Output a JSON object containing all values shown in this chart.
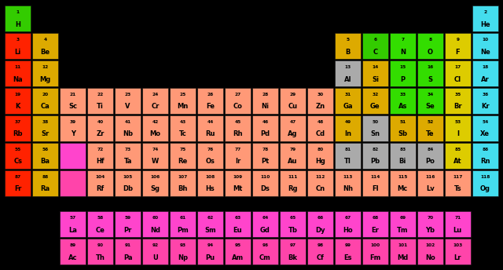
{
  "background": "#000000",
  "elements": [
    {
      "num": 1,
      "sym": "H",
      "col": 0,
      "row": 0,
      "color": "#33cc00"
    },
    {
      "num": 2,
      "sym": "He",
      "col": 17,
      "row": 0,
      "color": "#44ddee"
    },
    {
      "num": 3,
      "sym": "Li",
      "col": 0,
      "row": 1,
      "color": "#ff2200"
    },
    {
      "num": 4,
      "sym": "Be",
      "col": 1,
      "row": 1,
      "color": "#ddaa00"
    },
    {
      "num": 5,
      "sym": "B",
      "col": 12,
      "row": 1,
      "color": "#ddaa00"
    },
    {
      "num": 6,
      "sym": "C",
      "col": 13,
      "row": 1,
      "color": "#33cc00"
    },
    {
      "num": 7,
      "sym": "N",
      "col": 14,
      "row": 1,
      "color": "#33dd00"
    },
    {
      "num": 8,
      "sym": "O",
      "col": 15,
      "row": 1,
      "color": "#33dd00"
    },
    {
      "num": 9,
      "sym": "F",
      "col": 16,
      "row": 1,
      "color": "#ddcc00"
    },
    {
      "num": 10,
      "sym": "Ne",
      "col": 17,
      "row": 1,
      "color": "#44ddee"
    },
    {
      "num": 11,
      "sym": "Na",
      "col": 0,
      "row": 2,
      "color": "#ff2200"
    },
    {
      "num": 12,
      "sym": "Mg",
      "col": 1,
      "row": 2,
      "color": "#ddaa00"
    },
    {
      "num": 13,
      "sym": "Al",
      "col": 12,
      "row": 2,
      "color": "#aaaaaa"
    },
    {
      "num": 14,
      "sym": "Si",
      "col": 13,
      "row": 2,
      "color": "#ddaa00"
    },
    {
      "num": 15,
      "sym": "P",
      "col": 14,
      "row": 2,
      "color": "#33dd00"
    },
    {
      "num": 16,
      "sym": "S",
      "col": 15,
      "row": 2,
      "color": "#33dd00"
    },
    {
      "num": 17,
      "sym": "Cl",
      "col": 16,
      "row": 2,
      "color": "#ddcc00"
    },
    {
      "num": 18,
      "sym": "Ar",
      "col": 17,
      "row": 2,
      "color": "#44ddee"
    },
    {
      "num": 19,
      "sym": "K",
      "col": 0,
      "row": 3,
      "color": "#ff2200"
    },
    {
      "num": 20,
      "sym": "Ca",
      "col": 1,
      "row": 3,
      "color": "#ddaa00"
    },
    {
      "num": 21,
      "sym": "Sc",
      "col": 2,
      "row": 3,
      "color": "#ff9977"
    },
    {
      "num": 22,
      "sym": "Ti",
      "col": 3,
      "row": 3,
      "color": "#ff9977"
    },
    {
      "num": 23,
      "sym": "V",
      "col": 4,
      "row": 3,
      "color": "#ff9977"
    },
    {
      "num": 24,
      "sym": "Cr",
      "col": 5,
      "row": 3,
      "color": "#ff9977"
    },
    {
      "num": 25,
      "sym": "Mn",
      "col": 6,
      "row": 3,
      "color": "#ff9977"
    },
    {
      "num": 26,
      "sym": "Fe",
      "col": 7,
      "row": 3,
      "color": "#ff9977"
    },
    {
      "num": 27,
      "sym": "Co",
      "col": 8,
      "row": 3,
      "color": "#ff9977"
    },
    {
      "num": 28,
      "sym": "Ni",
      "col": 9,
      "row": 3,
      "color": "#ff9977"
    },
    {
      "num": 29,
      "sym": "Cu",
      "col": 10,
      "row": 3,
      "color": "#ff9977"
    },
    {
      "num": 30,
      "sym": "Zn",
      "col": 11,
      "row": 3,
      "color": "#ff9977"
    },
    {
      "num": 31,
      "sym": "Ga",
      "col": 12,
      "row": 3,
      "color": "#ddaa00"
    },
    {
      "num": 32,
      "sym": "Ge",
      "col": 13,
      "row": 3,
      "color": "#ddaa00"
    },
    {
      "num": 33,
      "sym": "As",
      "col": 14,
      "row": 3,
      "color": "#33dd00"
    },
    {
      "num": 34,
      "sym": "Se",
      "col": 15,
      "row": 3,
      "color": "#33dd00"
    },
    {
      "num": 35,
      "sym": "Br",
      "col": 16,
      "row": 3,
      "color": "#ddcc00"
    },
    {
      "num": 36,
      "sym": "Kr",
      "col": 17,
      "row": 3,
      "color": "#44ddee"
    },
    {
      "num": 37,
      "sym": "Rb",
      "col": 0,
      "row": 4,
      "color": "#ff2200"
    },
    {
      "num": 38,
      "sym": "Sr",
      "col": 1,
      "row": 4,
      "color": "#ddaa00"
    },
    {
      "num": 39,
      "sym": "Y",
      "col": 2,
      "row": 4,
      "color": "#ff9977"
    },
    {
      "num": 40,
      "sym": "Zr",
      "col": 3,
      "row": 4,
      "color": "#ff9977"
    },
    {
      "num": 41,
      "sym": "Nb",
      "col": 4,
      "row": 4,
      "color": "#ff9977"
    },
    {
      "num": 42,
      "sym": "Mo",
      "col": 5,
      "row": 4,
      "color": "#ff9977"
    },
    {
      "num": 43,
      "sym": "Tc",
      "col": 6,
      "row": 4,
      "color": "#ff9977"
    },
    {
      "num": 44,
      "sym": "Ru",
      "col": 7,
      "row": 4,
      "color": "#ff9977"
    },
    {
      "num": 45,
      "sym": "Rh",
      "col": 8,
      "row": 4,
      "color": "#ff9977"
    },
    {
      "num": 46,
      "sym": "Pd",
      "col": 9,
      "row": 4,
      "color": "#ff9977"
    },
    {
      "num": 47,
      "sym": "Ag",
      "col": 10,
      "row": 4,
      "color": "#ff9977"
    },
    {
      "num": 48,
      "sym": "Cd",
      "col": 11,
      "row": 4,
      "color": "#ff9977"
    },
    {
      "num": 49,
      "sym": "In",
      "col": 12,
      "row": 4,
      "color": "#ddaa00"
    },
    {
      "num": 50,
      "sym": "Sn",
      "col": 13,
      "row": 4,
      "color": "#aaaaaa"
    },
    {
      "num": 51,
      "sym": "Sb",
      "col": 14,
      "row": 4,
      "color": "#ddaa00"
    },
    {
      "num": 52,
      "sym": "Te",
      "col": 15,
      "row": 4,
      "color": "#ddaa00"
    },
    {
      "num": 53,
      "sym": "I",
      "col": 16,
      "row": 4,
      "color": "#ddcc00"
    },
    {
      "num": 54,
      "sym": "Xe",
      "col": 17,
      "row": 4,
      "color": "#44ddee"
    },
    {
      "num": 55,
      "sym": "Cs",
      "col": 0,
      "row": 5,
      "color": "#ff2200"
    },
    {
      "num": 56,
      "sym": "Ba",
      "col": 1,
      "row": 5,
      "color": "#ddaa00"
    },
    {
      "num": 0,
      "sym": "",
      "col": 2,
      "row": 5,
      "color": "#ff44cc"
    },
    {
      "num": 72,
      "sym": "Hf",
      "col": 3,
      "row": 5,
      "color": "#ff9977"
    },
    {
      "num": 73,
      "sym": "Ta",
      "col": 4,
      "row": 5,
      "color": "#ff9977"
    },
    {
      "num": 74,
      "sym": "W",
      "col": 5,
      "row": 5,
      "color": "#ff9977"
    },
    {
      "num": 75,
      "sym": "Re",
      "col": 6,
      "row": 5,
      "color": "#ff9977"
    },
    {
      "num": 76,
      "sym": "Os",
      "col": 7,
      "row": 5,
      "color": "#ff9977"
    },
    {
      "num": 77,
      "sym": "Ir",
      "col": 8,
      "row": 5,
      "color": "#ff9977"
    },
    {
      "num": 78,
      "sym": "Pt",
      "col": 9,
      "row": 5,
      "color": "#ff9977"
    },
    {
      "num": 79,
      "sym": "Au",
      "col": 10,
      "row": 5,
      "color": "#ff9977"
    },
    {
      "num": 80,
      "sym": "Hg",
      "col": 11,
      "row": 5,
      "color": "#ff9977"
    },
    {
      "num": 81,
      "sym": "Tl",
      "col": 12,
      "row": 5,
      "color": "#aaaaaa"
    },
    {
      "num": 82,
      "sym": "Pb",
      "col": 13,
      "row": 5,
      "color": "#aaaaaa"
    },
    {
      "num": 83,
      "sym": "Bi",
      "col": 14,
      "row": 5,
      "color": "#aaaaaa"
    },
    {
      "num": 84,
      "sym": "Po",
      "col": 15,
      "row": 5,
      "color": "#aaaaaa"
    },
    {
      "num": 85,
      "sym": "At",
      "col": 16,
      "row": 5,
      "color": "#ddcc00"
    },
    {
      "num": 86,
      "sym": "Rn",
      "col": 17,
      "row": 5,
      "color": "#44ddee"
    },
    {
      "num": 87,
      "sym": "Fr",
      "col": 0,
      "row": 6,
      "color": "#ff2200"
    },
    {
      "num": 88,
      "sym": "Ra",
      "col": 1,
      "row": 6,
      "color": "#ddaa00"
    },
    {
      "num": 0,
      "sym": "",
      "col": 2,
      "row": 6,
      "color": "#ff44aa"
    },
    {
      "num": 104,
      "sym": "Rf",
      "col": 3,
      "row": 6,
      "color": "#ff9977"
    },
    {
      "num": 105,
      "sym": "Db",
      "col": 4,
      "row": 6,
      "color": "#ff9977"
    },
    {
      "num": 106,
      "sym": "Sg",
      "col": 5,
      "row": 6,
      "color": "#ff9977"
    },
    {
      "num": 107,
      "sym": "Bh",
      "col": 6,
      "row": 6,
      "color": "#ff9977"
    },
    {
      "num": 108,
      "sym": "Hs",
      "col": 7,
      "row": 6,
      "color": "#ff9977"
    },
    {
      "num": 109,
      "sym": "Mt",
      "col": 8,
      "row": 6,
      "color": "#ff9977"
    },
    {
      "num": 110,
      "sym": "Ds",
      "col": 9,
      "row": 6,
      "color": "#ff9977"
    },
    {
      "num": 111,
      "sym": "Rg",
      "col": 10,
      "row": 6,
      "color": "#ff9977"
    },
    {
      "num": 112,
      "sym": "Cn",
      "col": 11,
      "row": 6,
      "color": "#ff9977"
    },
    {
      "num": 113,
      "sym": "Nh",
      "col": 12,
      "row": 6,
      "color": "#ff9977"
    },
    {
      "num": 114,
      "sym": "Fl",
      "col": 13,
      "row": 6,
      "color": "#ff9977"
    },
    {
      "num": 115,
      "sym": "Mc",
      "col": 14,
      "row": 6,
      "color": "#ff9977"
    },
    {
      "num": 116,
      "sym": "Lv",
      "col": 15,
      "row": 6,
      "color": "#ff9977"
    },
    {
      "num": 117,
      "sym": "Ts",
      "col": 16,
      "row": 6,
      "color": "#ff9977"
    },
    {
      "num": 118,
      "sym": "Og",
      "col": 17,
      "row": 6,
      "color": "#44ddee"
    },
    {
      "num": 57,
      "sym": "La",
      "col": 2,
      "row": 8,
      "color": "#ff44cc"
    },
    {
      "num": 58,
      "sym": "Ce",
      "col": 3,
      "row": 8,
      "color": "#ff44cc"
    },
    {
      "num": 59,
      "sym": "Pr",
      "col": 4,
      "row": 8,
      "color": "#ff44cc"
    },
    {
      "num": 60,
      "sym": "Nd",
      "col": 5,
      "row": 8,
      "color": "#ff44cc"
    },
    {
      "num": 61,
      "sym": "Pm",
      "col": 6,
      "row": 8,
      "color": "#ff44cc"
    },
    {
      "num": 62,
      "sym": "Sm",
      "col": 7,
      "row": 8,
      "color": "#ff44cc"
    },
    {
      "num": 63,
      "sym": "Eu",
      "col": 8,
      "row": 8,
      "color": "#ff44cc"
    },
    {
      "num": 64,
      "sym": "Gd",
      "col": 9,
      "row": 8,
      "color": "#ff44cc"
    },
    {
      "num": 65,
      "sym": "Tb",
      "col": 10,
      "row": 8,
      "color": "#ff44cc"
    },
    {
      "num": 66,
      "sym": "Dy",
      "col": 11,
      "row": 8,
      "color": "#ff44cc"
    },
    {
      "num": 67,
      "sym": "Ho",
      "col": 12,
      "row": 8,
      "color": "#ff44cc"
    },
    {
      "num": 68,
      "sym": "Er",
      "col": 13,
      "row": 8,
      "color": "#ff44cc"
    },
    {
      "num": 69,
      "sym": "Tm",
      "col": 14,
      "row": 8,
      "color": "#ff44cc"
    },
    {
      "num": 70,
      "sym": "Yb",
      "col": 15,
      "row": 8,
      "color": "#ff44cc"
    },
    {
      "num": 71,
      "sym": "Lu",
      "col": 16,
      "row": 8,
      "color": "#ff44cc"
    },
    {
      "num": 89,
      "sym": "Ac",
      "col": 2,
      "row": 9,
      "color": "#ff44aa"
    },
    {
      "num": 90,
      "sym": "Th",
      "col": 3,
      "row": 9,
      "color": "#ff44aa"
    },
    {
      "num": 91,
      "sym": "Pa",
      "col": 4,
      "row": 9,
      "color": "#ff44aa"
    },
    {
      "num": 92,
      "sym": "U",
      "col": 5,
      "row": 9,
      "color": "#ff44aa"
    },
    {
      "num": 93,
      "sym": "Np",
      "col": 6,
      "row": 9,
      "color": "#ff44aa"
    },
    {
      "num": 94,
      "sym": "Pu",
      "col": 7,
      "row": 9,
      "color": "#ff44aa"
    },
    {
      "num": 95,
      "sym": "Am",
      "col": 8,
      "row": 9,
      "color": "#ff44aa"
    },
    {
      "num": 96,
      "sym": "Cm",
      "col": 9,
      "row": 9,
      "color": "#ff44aa"
    },
    {
      "num": 97,
      "sym": "Bk",
      "col": 10,
      "row": 9,
      "color": "#ff44aa"
    },
    {
      "num": 98,
      "sym": "Cf",
      "col": 11,
      "row": 9,
      "color": "#ff44aa"
    },
    {
      "num": 99,
      "sym": "Es",
      "col": 12,
      "row": 9,
      "color": "#ff44aa"
    },
    {
      "num": 100,
      "sym": "Fm",
      "col": 13,
      "row": 9,
      "color": "#ff44aa"
    },
    {
      "num": 101,
      "sym": "Md",
      "col": 14,
      "row": 9,
      "color": "#ff44aa"
    },
    {
      "num": 102,
      "sym": "No",
      "col": 15,
      "row": 9,
      "color": "#ff44aa"
    },
    {
      "num": 103,
      "sym": "Lr",
      "col": 16,
      "row": 9,
      "color": "#ff44aa"
    }
  ],
  "fig_width": 6.4,
  "fig_height": 3.44,
  "dpi": 100
}
